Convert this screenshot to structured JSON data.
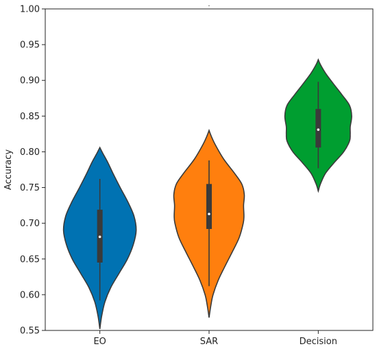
{
  "chart_data": {
    "type": "violin",
    "title": ".",
    "xlabel": "",
    "ylabel": "Accuracy",
    "ylim": [
      0.55,
      1.0
    ],
    "yticks": [
      0.55,
      0.6,
      0.65,
      0.7,
      0.75,
      0.8,
      0.85,
      0.9,
      0.95,
      1.0
    ],
    "ytick_labels": [
      "0.55",
      "0.60",
      "0.65",
      "0.70",
      "0.75",
      "0.80",
      "0.85",
      "0.90",
      "0.95",
      "1.00"
    ],
    "grid": false,
    "categories": [
      "EO",
      "SAR",
      "Decision"
    ],
    "colors": [
      "#0072b2",
      "#ff7f0e",
      "#009e30"
    ],
    "violins": [
      {
        "label": "EO",
        "min": 0.592,
        "q1": 0.645,
        "median": 0.681,
        "q3": 0.719,
        "max": 0.762,
        "profile": [
          [
            0.552,
            0.0
          ],
          [
            0.57,
            0.05
          ],
          [
            0.59,
            0.14
          ],
          [
            0.61,
            0.3
          ],
          [
            0.63,
            0.53
          ],
          [
            0.65,
            0.76
          ],
          [
            0.67,
            0.92
          ],
          [
            0.69,
            1.0
          ],
          [
            0.71,
            0.94
          ],
          [
            0.73,
            0.77
          ],
          [
            0.75,
            0.56
          ],
          [
            0.77,
            0.36
          ],
          [
            0.785,
            0.22
          ],
          [
            0.798,
            0.08
          ],
          [
            0.806,
            0.0
          ]
        ]
      },
      {
        "label": "SAR",
        "min": 0.612,
        "q1": 0.692,
        "median": 0.713,
        "q3": 0.755,
        "max": 0.788,
        "profile": [
          [
            0.568,
            0.0
          ],
          [
            0.585,
            0.05
          ],
          [
            0.6,
            0.11
          ],
          [
            0.62,
            0.25
          ],
          [
            0.64,
            0.44
          ],
          [
            0.66,
            0.64
          ],
          [
            0.68,
            0.83
          ],
          [
            0.7,
            0.94
          ],
          [
            0.71,
            0.96
          ],
          [
            0.725,
            0.95
          ],
          [
            0.74,
            0.97
          ],
          [
            0.755,
            0.9
          ],
          [
            0.77,
            0.7
          ],
          [
            0.79,
            0.4
          ],
          [
            0.81,
            0.17
          ],
          [
            0.822,
            0.06
          ],
          [
            0.83,
            0.0
          ]
        ]
      },
      {
        "label": "Decision",
        "min": 0.777,
        "q1": 0.806,
        "median": 0.831,
        "q3": 0.86,
        "max": 0.898,
        "profile": [
          [
            0.745,
            0.0
          ],
          [
            0.755,
            0.06
          ],
          [
            0.77,
            0.2
          ],
          [
            0.785,
            0.44
          ],
          [
            0.8,
            0.7
          ],
          [
            0.815,
            0.86
          ],
          [
            0.825,
            0.88
          ],
          [
            0.835,
            0.88
          ],
          [
            0.85,
            0.92
          ],
          [
            0.865,
            0.86
          ],
          [
            0.88,
            0.65
          ],
          [
            0.895,
            0.42
          ],
          [
            0.91,
            0.2
          ],
          [
            0.922,
            0.06
          ],
          [
            0.929,
            0.0
          ]
        ]
      }
    ]
  }
}
